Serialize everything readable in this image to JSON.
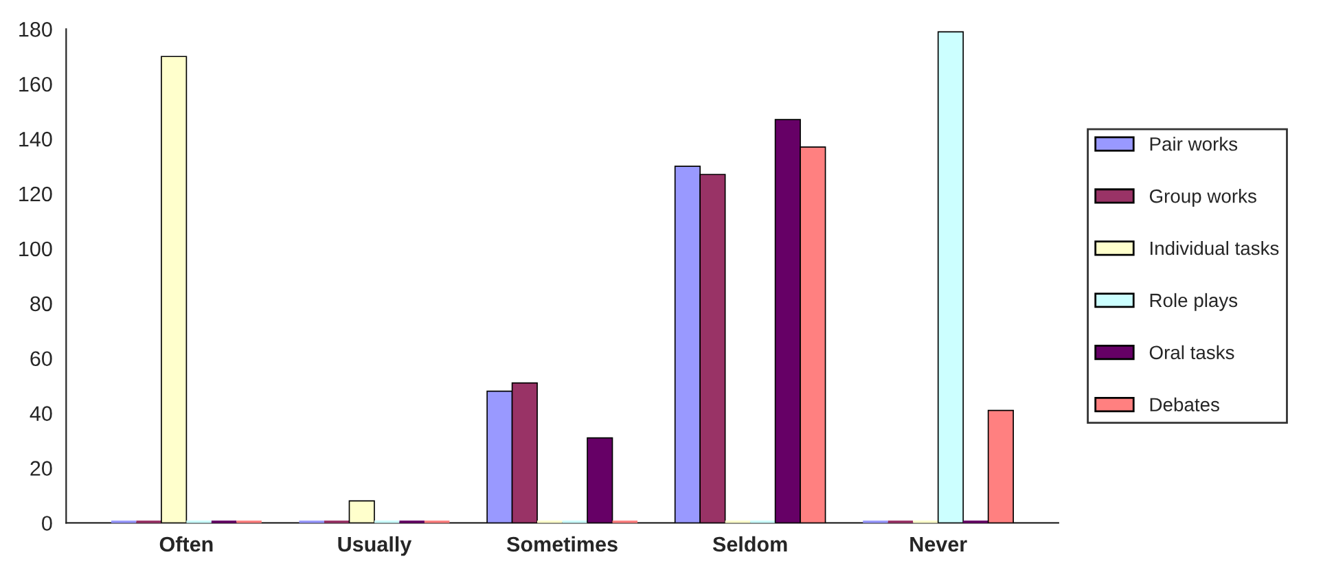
{
  "chart_data": {
    "type": "bar",
    "categories": [
      "Often",
      "Usually",
      "Sometimes",
      "Seldom",
      "Never"
    ],
    "series": [
      {
        "name": "Pair works",
        "color": "#9999ff",
        "values": [
          0,
          0,
          48,
          130,
          0
        ]
      },
      {
        "name": "Group works",
        "color": "#993366",
        "values": [
          0,
          0,
          51,
          127,
          0
        ]
      },
      {
        "name": "Individual tasks",
        "color": "#ffffcc",
        "values": [
          170,
          8,
          0,
          0,
          0
        ]
      },
      {
        "name": "Role plays",
        "color": "#ccffff",
        "values": [
          0,
          0,
          0,
          0,
          179
        ]
      },
      {
        "name": "Oral tasks",
        "color": "#660066",
        "values": [
          0,
          0,
          31,
          147,
          0
        ]
      },
      {
        "name": "Debates",
        "color": "#ff8080",
        "values": [
          0,
          0,
          0,
          137,
          41
        ]
      }
    ],
    "ylim": [
      0,
      180
    ],
    "yticks": [
      0,
      20,
      40,
      60,
      80,
      100,
      120,
      140,
      160,
      180
    ],
    "grid": false,
    "legend": "right"
  }
}
